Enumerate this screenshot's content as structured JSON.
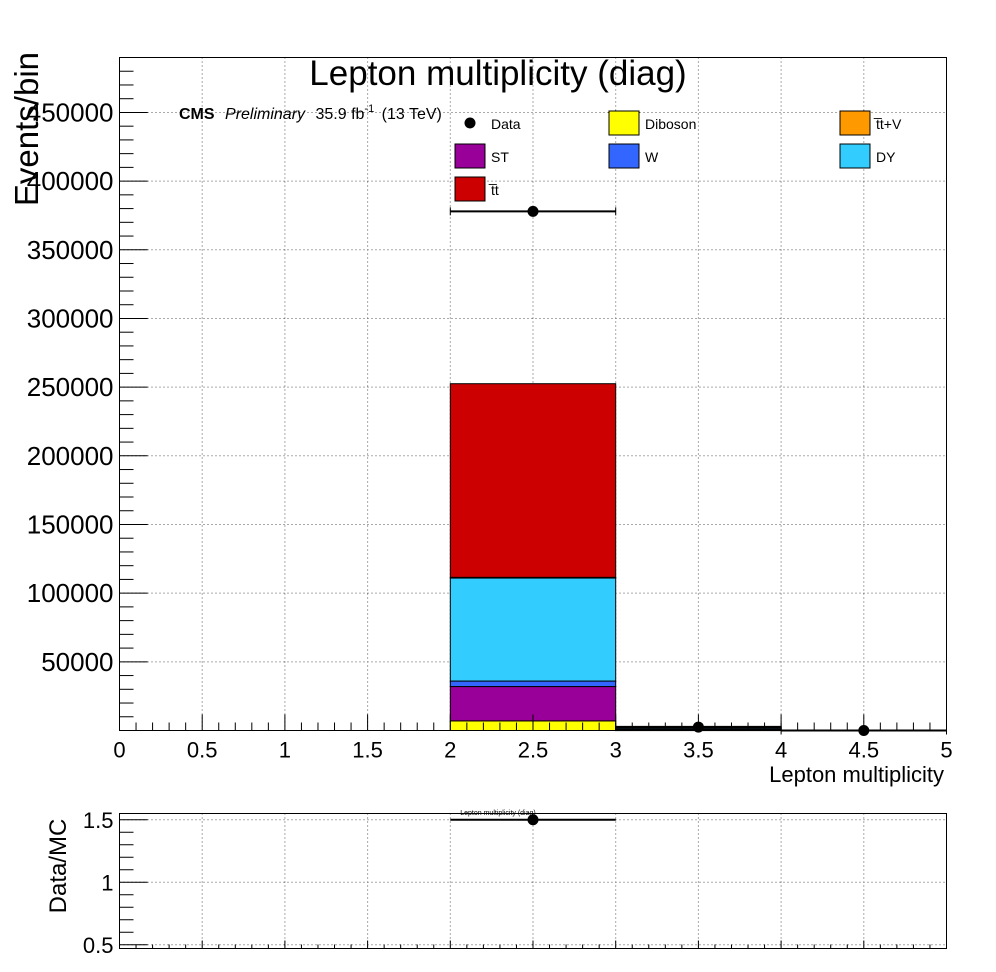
{
  "cms": {
    "experiment": "CMS",
    "status": "Preliminary",
    "lumi": "35.9 fb",
    "lumi_sup": "-1",
    "energy": "(13 TeV)"
  },
  "chart_data": [
    {
      "type": "bar",
      "stacked": true,
      "title": "Lepton multiplicity (diag)",
      "xlabel": "Lepton multiplicity",
      "ylabel": "Events/bin",
      "xlim": [
        0,
        5
      ],
      "ylim": [
        0,
        490000
      ],
      "grid": true,
      "legend_position": "top-right",
      "x_ticks": [
        0,
        0.5,
        1,
        1.5,
        2,
        2.5,
        3,
        3.5,
        4,
        4.5,
        5
      ],
      "x_tick_labels": [
        "0",
        "0.5",
        "1",
        "1.5",
        "2",
        "2.5",
        "3",
        "3.5",
        "4",
        "4.5",
        "5"
      ],
      "y_ticks": [
        50000,
        100000,
        150000,
        200000,
        250000,
        300000,
        350000,
        400000,
        450000
      ],
      "y_tick_labels": [
        "50000",
        "100000",
        "150000",
        "200000",
        "250000",
        "300000",
        "350000",
        "400000",
        "450000"
      ],
      "bins": [
        [
          2,
          3
        ],
        [
          3,
          4
        ],
        [
          4,
          5
        ]
      ],
      "series": [
        {
          "name": "Diboson",
          "color": "#ffff00",
          "values": [
            7000,
            300,
            0
          ]
        },
        {
          "name": "ST",
          "color": "#990099",
          "values": [
            25000,
            400,
            0
          ]
        },
        {
          "name": "W",
          "color": "#3366ff",
          "values": [
            4000,
            100,
            0
          ]
        },
        {
          "name": "DY",
          "color": "#33ccff",
          "values": [
            75000,
            1000,
            0
          ]
        },
        {
          "name": "t̄V",
          "color": "#ff9900",
          "values": [
            500,
            100,
            0
          ]
        },
        {
          "name": "tt̄",
          "color": "#cc0000",
          "values": [
            141000,
            1100,
            0
          ]
        }
      ],
      "data": {
        "name": "Data",
        "points": [
          {
            "x": 2.5,
            "y": 378000,
            "xerr": 0.5
          },
          {
            "x": 3.5,
            "y": 2500,
            "xerr": 0.5
          },
          {
            "x": 4.5,
            "y": 0,
            "xerr": 0.5
          }
        ]
      },
      "legend": [
        {
          "label": "Data",
          "kind": "marker"
        },
        {
          "label": "Diboson",
          "color": "#ffff00"
        },
        {
          "label": "t̅t+V",
          "color": "#ff9900"
        },
        {
          "label": "ST",
          "color": "#990099"
        },
        {
          "label": "W",
          "color": "#3366ff"
        },
        {
          "label": "DY",
          "color": "#33ccff"
        },
        {
          "label": "t̅t",
          "color": "#cc0000"
        }
      ]
    },
    {
      "type": "scatter",
      "title": "Lepton multiplicity (diag)",
      "ylabel": "Data/MC",
      "xlim": [
        0,
        5
      ],
      "ylim": [
        0.47,
        1.55
      ],
      "grid": true,
      "y_ticks": [
        0.5,
        1,
        1.5
      ],
      "y_tick_labels": [
        "0.5",
        "1",
        "1.5"
      ],
      "points": [
        {
          "x": 2.5,
          "y": 1.5,
          "xerr": 0.5
        }
      ]
    }
  ]
}
